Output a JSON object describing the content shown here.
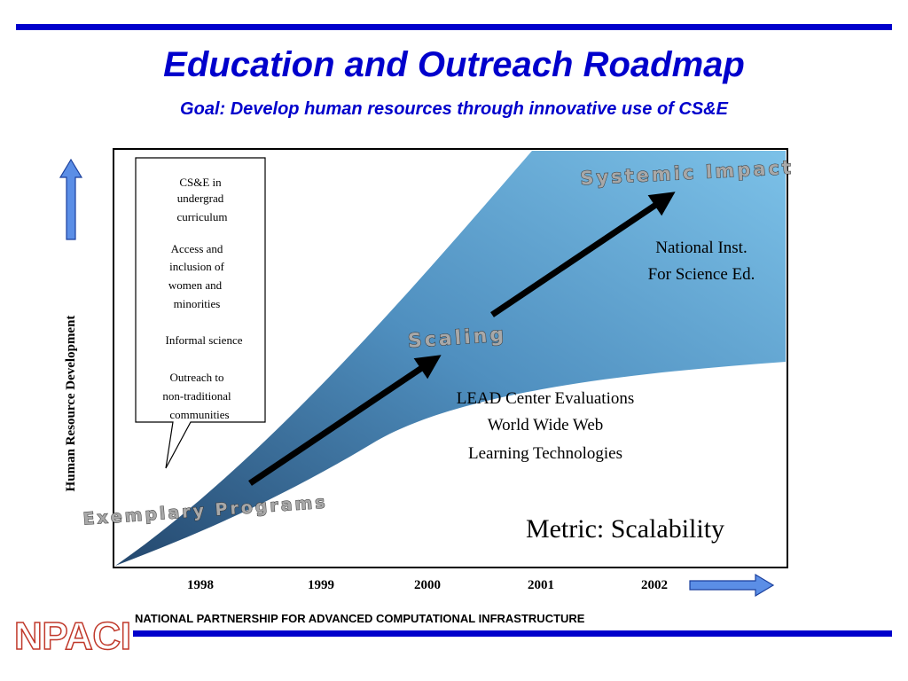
{
  "header": {
    "title": "Education and Outreach Roadmap",
    "subtitle": "Goal: Develop human resources through innovative use of CS&E"
  },
  "callout": {
    "items": [
      [
        "CS&E in",
        "undergrad",
        "curriculum"
      ],
      [
        "Access and",
        "inclusion of",
        "women and",
        "minorities"
      ],
      [
        "Informal science"
      ],
      [
        "Outreach to",
        "non-traditional",
        "communities"
      ]
    ]
  },
  "stages": [
    "Exemplary Programs",
    "Scaling",
    "Systemic Impact"
  ],
  "notes": {
    "national": [
      "National Inst.",
      "For Science Ed."
    ],
    "lead": [
      "LEAD Center Evaluations",
      "World Wide Web",
      "Learning Technologies"
    ],
    "metric": "Metric: Scalability"
  },
  "axis": {
    "y_label": "Human Resource Development",
    "years": [
      "1998",
      "1999",
      "2000",
      "2001",
      "2002"
    ]
  },
  "footer": {
    "logo": "NPACI",
    "text": "NATIONAL PARTNERSHIP FOR ADVANCED COMPUTATIONAL INFRASTRUCTURE"
  }
}
